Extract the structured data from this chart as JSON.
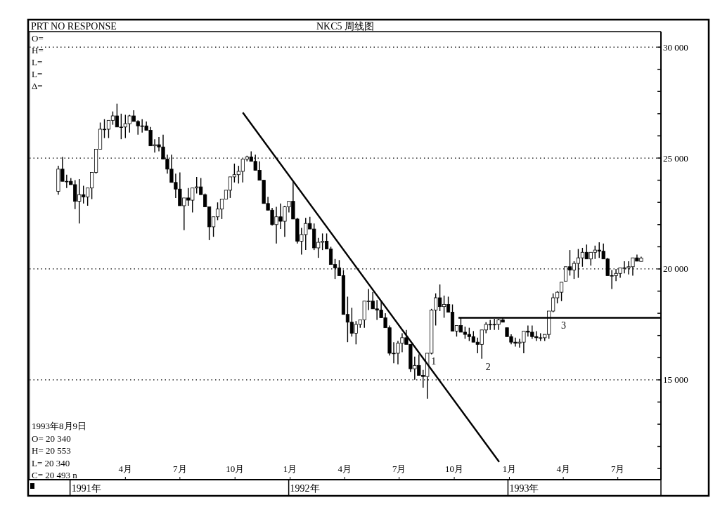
{
  "chart_data": {
    "type": "candlestick",
    "title": "NKC5 周线图",
    "color": "#000000",
    "x": [
      "1990-12-10",
      "1990-12-17",
      "1990-12-24",
      "1990-12-31",
      "1991-01-07",
      "1991-01-14",
      "1991-01-21",
      "1991-01-28",
      "1991-02-04",
      "1991-02-11",
      "1991-02-18",
      "1991-02-25",
      "1991-03-04",
      "1991-03-11",
      "1991-03-18",
      "1991-03-25",
      "1991-04-01",
      "1991-04-08",
      "1991-04-15",
      "1991-04-22",
      "1991-04-29",
      "1991-05-06",
      "1991-05-13",
      "1991-05-20",
      "1991-05-27",
      "1991-06-03",
      "1991-06-10",
      "1991-06-17",
      "1991-06-24",
      "1991-07-01",
      "1991-07-08",
      "1991-07-15",
      "1991-07-22",
      "1991-07-29",
      "1991-08-05",
      "1991-08-12",
      "1991-08-19",
      "1991-08-26",
      "1991-09-02",
      "1991-09-09",
      "1991-09-16",
      "1991-09-23",
      "1991-09-30",
      "1991-10-07",
      "1991-10-14",
      "1991-10-21",
      "1991-10-28",
      "1991-11-04",
      "1991-11-11",
      "1991-11-18",
      "1991-11-25",
      "1991-12-02",
      "1991-12-09",
      "1991-12-16",
      "1991-12-23",
      "1991-12-30",
      "1992-01-06",
      "1992-01-13",
      "1992-01-20",
      "1992-01-27",
      "1992-02-03",
      "1992-02-10",
      "1992-02-17",
      "1992-02-24",
      "1992-03-02",
      "1992-03-09",
      "1992-03-16",
      "1992-03-23",
      "1992-03-30",
      "1992-04-06",
      "1992-04-13",
      "1992-04-20",
      "1992-04-27",
      "1992-05-04",
      "1992-05-11",
      "1992-05-18",
      "1992-05-25",
      "1992-06-01",
      "1992-06-08",
      "1992-06-15",
      "1992-06-22",
      "1992-06-29",
      "1992-07-06",
      "1992-07-13",
      "1992-07-20",
      "1992-07-27",
      "1992-08-03",
      "1992-08-10",
      "1992-08-17",
      "1992-08-24",
      "1992-08-31",
      "1992-09-07",
      "1992-09-14",
      "1992-09-21",
      "1992-09-28",
      "1992-10-05",
      "1992-10-12",
      "1992-10-19",
      "1992-10-26",
      "1992-11-02",
      "1992-11-09",
      "1992-11-16",
      "1992-11-23",
      "1992-11-30",
      "1992-12-07",
      "1992-12-14",
      "1992-12-21",
      "1992-12-28",
      "1993-01-04",
      "1993-01-11",
      "1993-01-18",
      "1993-01-25",
      "1993-02-01",
      "1993-02-08",
      "1993-02-15",
      "1993-02-22",
      "1993-03-01",
      "1993-03-08",
      "1993-03-15",
      "1993-03-22",
      "1993-03-29",
      "1993-04-05",
      "1993-04-12",
      "1993-04-19",
      "1993-04-26",
      "1993-05-03",
      "1993-05-10",
      "1993-05-17",
      "1993-05-24",
      "1993-05-31",
      "1993-06-07",
      "1993-06-14",
      "1993-06-21",
      "1993-06-28",
      "1993-07-05",
      "1993-07-12",
      "1993-07-19",
      "1993-07-26",
      "1993-08-02",
      "1993-08-09"
    ],
    "ohlc": [
      [
        23500,
        24650,
        23350,
        24500
      ],
      [
        24500,
        25050,
        23950,
        23950
      ],
      [
        23950,
        24250,
        23650,
        23950
      ],
      [
        23950,
        24100,
        23800,
        23800
      ],
      [
        23800,
        24000,
        22700,
        23050
      ],
      [
        23050,
        24050,
        22050,
        23350
      ],
      [
        23350,
        23750,
        22950,
        23250
      ],
      [
        23250,
        23650,
        22850,
        23650
      ],
      [
        23650,
        24350,
        23150,
        24350
      ],
      [
        24350,
        25400,
        24300,
        25400
      ],
      [
        25400,
        26600,
        25400,
        26300
      ],
      [
        26300,
        26750,
        25900,
        26300
      ],
      [
        26300,
        26700,
        25900,
        26700
      ],
      [
        26700,
        27100,
        26500,
        26900
      ],
      [
        26900,
        27450,
        26400,
        26400
      ],
      [
        26400,
        27000,
        25850,
        26400
      ],
      [
        26400,
        26950,
        25900,
        26550
      ],
      [
        26550,
        26950,
        26150,
        26900
      ],
      [
        26900,
        27150,
        26650,
        26650
      ],
      [
        26650,
        26700,
        26050,
        26450
      ],
      [
        26450,
        26750,
        26150,
        26450
      ],
      [
        26450,
        26650,
        26250,
        26250
      ],
      [
        26250,
        26400,
        25550,
        25550
      ],
      [
        25550,
        25850,
        25250,
        25600
      ],
      [
        25600,
        25950,
        25300,
        25500
      ],
      [
        25500,
        26050,
        24950,
        24950
      ],
      [
        24950,
        25150,
        24300,
        24500
      ],
      [
        24500,
        25150,
        23900,
        23900
      ],
      [
        23900,
        24300,
        23200,
        23600
      ],
      [
        23600,
        24350,
        22850,
        22850
      ],
      [
        22850,
        23200,
        21750,
        23200
      ],
      [
        23200,
        23650,
        22850,
        23100
      ],
      [
        23100,
        23650,
        22550,
        23650
      ],
      [
        23650,
        24150,
        23400,
        23700
      ],
      [
        23700,
        24100,
        23350,
        23350
      ],
      [
        23350,
        23400,
        22800,
        22800
      ],
      [
        22800,
        22800,
        21300,
        21900
      ],
      [
        21900,
        22350,
        21450,
        22350
      ],
      [
        22350,
        23000,
        22200,
        22700
      ],
      [
        22700,
        23150,
        22250,
        23150
      ],
      [
        23150,
        23550,
        23150,
        23550
      ],
      [
        23550,
        24150,
        23200,
        24150
      ],
      [
        24150,
        24750,
        23900,
        24250
      ],
      [
        24250,
        24650,
        23850,
        24400
      ],
      [
        24400,
        24950,
        23900,
        24950
      ],
      [
        24950,
        25100,
        24850,
        25050
      ],
      [
        25050,
        25300,
        24850,
        24850
      ],
      [
        24850,
        25150,
        24450,
        24450
      ],
      [
        24450,
        24850,
        24000,
        24000
      ],
      [
        24000,
        24000,
        22950,
        22950
      ],
      [
        22950,
        23250,
        22650,
        22650
      ],
      [
        22650,
        22750,
        21950,
        22000
      ],
      [
        22000,
        22800,
        21150,
        22350
      ],
      [
        22350,
        22950,
        21800,
        22150
      ],
      [
        22150,
        22850,
        21450,
        22800
      ],
      [
        22800,
        23050,
        22550,
        23050
      ],
      [
        23050,
        23950,
        22250,
        22250
      ],
      [
        22250,
        22300,
        21150,
        21250
      ],
      [
        21250,
        21850,
        20650,
        21550
      ],
      [
        21550,
        22300,
        20850,
        22050
      ],
      [
        22050,
        22350,
        21800,
        21800
      ],
      [
        21800,
        22050,
        20850,
        20950
      ],
      [
        20950,
        21400,
        20500,
        21200
      ],
      [
        21200,
        21600,
        20850,
        21250
      ],
      [
        21250,
        21600,
        20900,
        20900
      ],
      [
        20900,
        21000,
        20200,
        20200
      ],
      [
        20200,
        20450,
        19550,
        20050
      ],
      [
        20050,
        20400,
        19700,
        19700
      ],
      [
        19700,
        19950,
        17950,
        17950
      ],
      [
        17950,
        18750,
        16700,
        17600
      ],
      [
        17600,
        18250,
        16950,
        17100
      ],
      [
        17100,
        17650,
        16600,
        17500
      ],
      [
        17500,
        17700,
        17350,
        17700
      ],
      [
        17700,
        18550,
        17350,
        18550
      ],
      [
        18550,
        19100,
        18150,
        18550
      ],
      [
        18550,
        18950,
        18200,
        18200
      ],
      [
        18200,
        18600,
        17700,
        18150
      ],
      [
        18150,
        18550,
        17800,
        17800
      ],
      [
        17800,
        18000,
        17350,
        17350
      ],
      [
        17350,
        17450,
        16100,
        16200
      ],
      [
        16200,
        16700,
        15750,
        16200
      ],
      [
        16200,
        16750,
        15700,
        16650
      ],
      [
        16650,
        17100,
        16250,
        16900
      ],
      [
        16900,
        17250,
        16600,
        16600
      ],
      [
        16600,
        16600,
        15350,
        15500
      ],
      [
        15500,
        16050,
        15000,
        15650
      ],
      [
        15650,
        16150,
        15200,
        15200
      ],
      [
        15200,
        15450,
        14650,
        15150
      ],
      [
        15150,
        16200,
        14150,
        16200
      ],
      [
        16200,
        18200,
        16150,
        18150
      ],
      [
        18150,
        18900,
        17450,
        18700
      ],
      [
        18700,
        19300,
        18100,
        18300
      ],
      [
        18300,
        18800,
        17800,
        18400
      ],
      [
        18400,
        18750,
        18050,
        18050
      ],
      [
        18050,
        18400,
        17200,
        17200
      ],
      [
        17200,
        17450,
        16950,
        17450
      ],
      [
        17450,
        17800,
        17150,
        17150
      ],
      [
        17150,
        17400,
        16850,
        17050
      ],
      [
        17050,
        17350,
        16750,
        16950
      ],
      [
        16950,
        17200,
        16700,
        16700
      ],
      [
        16700,
        16900,
        16200,
        16600
      ],
      [
        16600,
        17250,
        15950,
        17250
      ],
      [
        17250,
        17600,
        17100,
        17500
      ],
      [
        17500,
        17700,
        17250,
        17500
      ],
      [
        17500,
        17750,
        17250,
        17500
      ],
      [
        17500,
        17750,
        17250,
        17700
      ],
      [
        17700,
        17800,
        17600,
        17600
      ],
      [
        17350,
        17350,
        16950,
        16950
      ],
      [
        16950,
        17050,
        16600,
        16700
      ],
      [
        16700,
        16900,
        16500,
        16650
      ],
      [
        16650,
        16850,
        16450,
        16700
      ],
      [
        16700,
        17200,
        16200,
        17200
      ],
      [
        17200,
        17450,
        16950,
        17150
      ],
      [
        17150,
        17450,
        16850,
        16950
      ],
      [
        16950,
        17200,
        16750,
        16900
      ],
      [
        16900,
        17100,
        16750,
        16900
      ],
      [
        16900,
        17050,
        16750,
        17050
      ],
      [
        17050,
        18100,
        16850,
        18100
      ],
      [
        18100,
        18900,
        18050,
        18700
      ],
      [
        18700,
        19000,
        18450,
        18950
      ],
      [
        18950,
        19400,
        18550,
        19400
      ],
      [
        19450,
        20100,
        19450,
        20100
      ],
      [
        20100,
        20850,
        19700,
        19950
      ],
      [
        19950,
        20350,
        19550,
        20250
      ],
      [
        20250,
        20900,
        19600,
        20500
      ],
      [
        20500,
        20950,
        20100,
        20750
      ],
      [
        20750,
        21100,
        20450,
        20450
      ],
      [
        20450,
        20750,
        20150,
        20750
      ],
      [
        20750,
        21050,
        20450,
        20850
      ],
      [
        20850,
        21200,
        20500,
        20800
      ],
      [
        20800,
        21150,
        20450,
        20450
      ],
      [
        20450,
        20500,
        19700,
        19700
      ],
      [
        19700,
        19950,
        19100,
        19700
      ],
      [
        19700,
        20000,
        19450,
        19800
      ],
      [
        19800,
        20050,
        19600,
        20050
      ],
      [
        20050,
        20350,
        19800,
        20050
      ],
      [
        20050,
        20350,
        19750,
        20100
      ],
      [
        20100,
        20500,
        19700,
        20500
      ],
      [
        20500,
        20650,
        20350,
        20350
      ],
      [
        20340,
        20553,
        20340,
        20493
      ]
    ],
    "series": [
      {
        "type": "line",
        "x": [
          "1991-10-14",
          "1992-12-15"
        ],
        "values": [
          27050,
          11300
        ],
        "color": "#000000"
      },
      {
        "type": "line",
        "x": [
          "1992-10-08",
          "1993-09-11"
        ],
        "values": [
          17800,
          17800
        ],
        "color": "#000000"
      }
    ],
    "xlim": [
      "1990-10-23",
      "1993-09-11"
    ],
    "xticks": [
      {
        "value": "1991-04-01",
        "label": "4月"
      },
      {
        "value": "1991-07-01",
        "label": "7月"
      },
      {
        "value": "1991-10-01",
        "label": "10月"
      },
      {
        "value": "1992-01-01",
        "label": "1月"
      },
      {
        "value": "1992-04-01",
        "label": "4月"
      },
      {
        "value": "1992-07-01",
        "label": "7月"
      },
      {
        "value": "1992-10-01",
        "label": "10月"
      },
      {
        "value": "1993-01-01",
        "label": "1月"
      },
      {
        "value": "1993-04-01",
        "label": "4月"
      },
      {
        "value": "1993-07-01",
        "label": "7月"
      }
    ],
    "ylim": [
      10500,
      30700
    ],
    "yticks": [
      {
        "value": 11000,
        "label": null
      },
      {
        "value": 12000,
        "label": null
      },
      {
        "value": 13000,
        "label": null
      },
      {
        "value": 14000,
        "label": null
      },
      {
        "value": 15000,
        "label": "15 000"
      },
      {
        "value": 16000,
        "label": null
      },
      {
        "value": 17000,
        "label": null
      },
      {
        "value": 18000,
        "label": null
      },
      {
        "value": 19000,
        "label": null
      },
      {
        "value": 20000,
        "label": "20 000"
      },
      {
        "value": 21000,
        "label": null
      },
      {
        "value": 22000,
        "label": null
      },
      {
        "value": 23000,
        "label": null
      },
      {
        "value": 24000,
        "label": null
      },
      {
        "value": 25000,
        "label": "25 000"
      },
      {
        "value": 26000,
        "label": null
      },
      {
        "value": 27000,
        "label": null
      },
      {
        "value": 28000,
        "label": null
      },
      {
        "value": 29000,
        "label": null
      },
      {
        "value": 30000,
        "label": "30 000"
      }
    ],
    "ref_lines": [
      {
        "axis": "y",
        "value": 15000,
        "line_style": "dotted",
        "color": "#000000"
      },
      {
        "axis": "y",
        "value": 20000,
        "line_style": "dotted",
        "color": "#000000"
      },
      {
        "axis": "y",
        "value": 25000,
        "line_style": "dotted",
        "color": "#000000"
      },
      {
        "axis": "y",
        "value": 30000,
        "line_style": "dotted",
        "color": "#000000"
      }
    ],
    "annotations": [
      "PRT NO RESPONSE",
      "O=",
      "H=",
      "L=",
      "L=",
      "Δ=",
      "1993年8月9日",
      "O= 20 340",
      "H= 20 553",
      "L= 20 340",
      "C= 20 493  n",
      "1991年",
      "1992年",
      "1993年",
      {
        "text": "1",
        "x": "1992-08-17",
        "y": 16200
      },
      {
        "text": "2",
        "x": "1992-11-16",
        "y": 15950
      },
      {
        "text": "3",
        "x": "1993-03-22",
        "y": 17800
      }
    ]
  }
}
